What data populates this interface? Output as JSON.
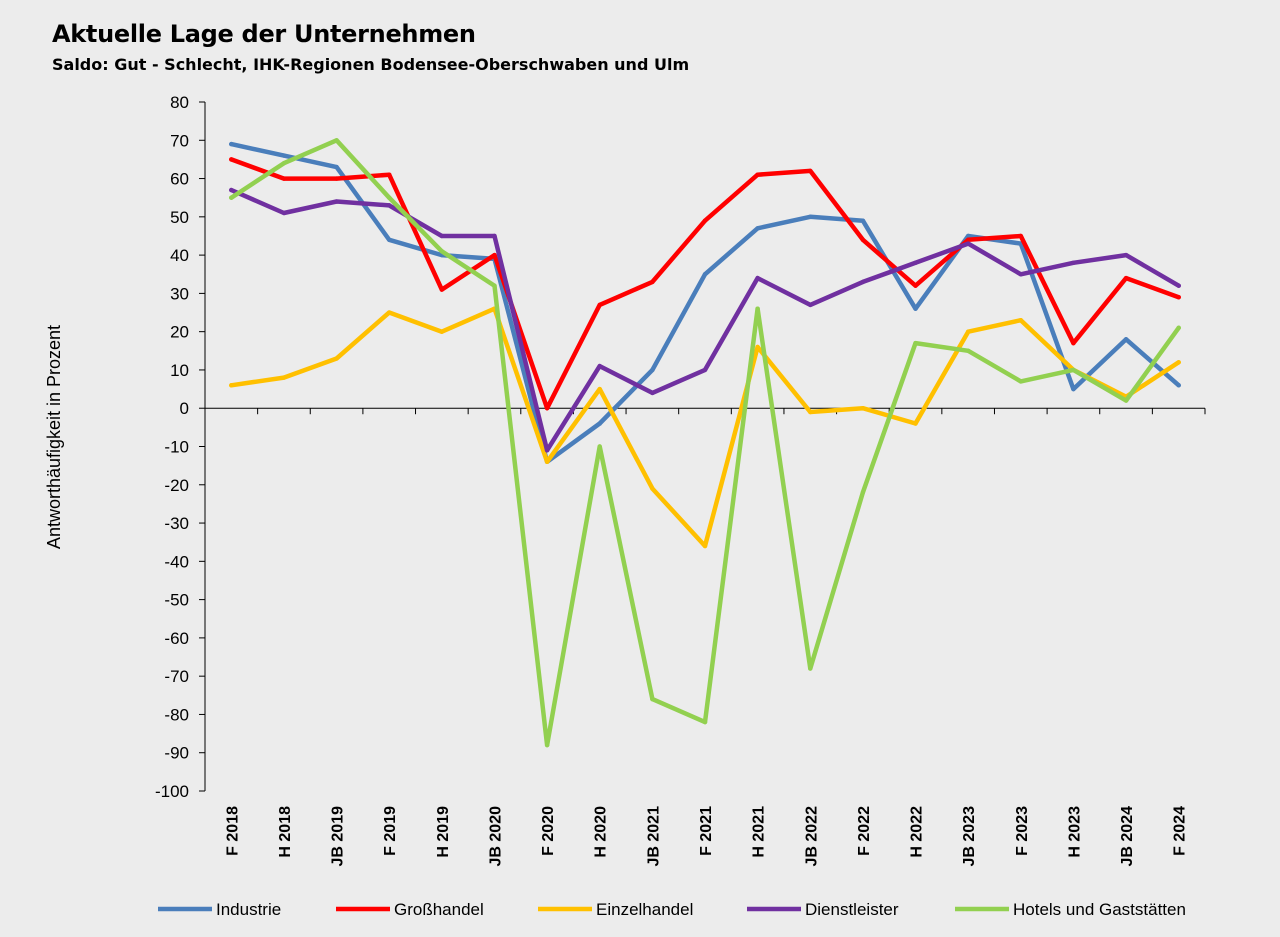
{
  "chart_data": {
    "type": "line",
    "title": "Aktuelle Lage der Unternehmen",
    "subtitle": "Saldo: Gut - Schlecht, IHK-Regionen Bodensee-Oberschwaben und Ulm",
    "xlabel": "",
    "ylabel": "Antworthäufigkeit in Prozent",
    "ylim": [
      -100,
      80
    ],
    "ystep": 10,
    "grid": false,
    "legend": "bottom",
    "categories": [
      "F 2018",
      "H 2018",
      "JB 2019",
      "F 2019",
      "H 2019",
      "JB 2020",
      "F 2020",
      "H 2020",
      "JB 2021",
      "F 2021",
      "H 2021",
      "JB 2022",
      "F 2022",
      "H 2022",
      "JB 2023",
      "F 2023",
      "H 2023",
      "JB 2024",
      "F 2024"
    ],
    "series": [
      {
        "name": "Industrie",
        "color": "#4a7ebb",
        "values": [
          69,
          66,
          63,
          44,
          40,
          39,
          -14,
          -4,
          10,
          35,
          47,
          50,
          49,
          26,
          45,
          43,
          5,
          18,
          6
        ]
      },
      {
        "name": "Großhandel",
        "color": "#ff0000",
        "values": [
          65,
          60,
          60,
          61,
          31,
          40,
          0,
          27,
          33,
          49,
          61,
          62,
          44,
          32,
          44,
          45,
          17,
          34,
          29
        ]
      },
      {
        "name": "Einzelhandel",
        "color": "#ffc000",
        "values": [
          6,
          8,
          13,
          25,
          20,
          26,
          -14,
          5,
          -21,
          -36,
          16,
          -1,
          0,
          -4,
          20,
          23,
          10,
          3,
          12
        ]
      },
      {
        "name": "Dienstleister",
        "color": "#7030a0",
        "values": [
          57,
          51,
          54,
          53,
          45,
          45,
          -11,
          11,
          4,
          10,
          34,
          27,
          33,
          38,
          43,
          35,
          38,
          40,
          32
        ]
      },
      {
        "name": "Hotels und Gaststätten",
        "color": "#92d050",
        "values": [
          55,
          64,
          70,
          55,
          41,
          32,
          -88,
          -10,
          -76,
          -82,
          26,
          -68,
          -22,
          17,
          15,
          7,
          10,
          2,
          21
        ]
      }
    ]
  }
}
